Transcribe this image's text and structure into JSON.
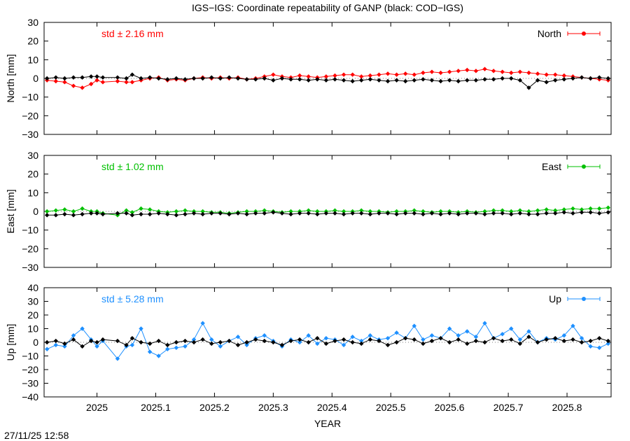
{
  "title": "IGS−IGS: Coordinate repeatability of GANP (black: COD−IGS)",
  "timestamp": "27/11/25 12:58",
  "chart_data": {
    "type": "line",
    "xlabel": "YEAR",
    "xlim": [
      2024.91,
      2025.875
    ],
    "x_ticks": [
      2025,
      2025.1,
      2025.2,
      2025.3,
      2025.4,
      2025.5,
      2025.6,
      2025.7,
      2025.8
    ],
    "x_tick_labels": [
      "2025",
      "2025.1",
      "2025.2",
      "2025.3",
      "2025.4",
      "2025.5",
      "2025.6",
      "2025.7",
      "2025.8"
    ],
    "panels": [
      {
        "id": "north",
        "ylabel": "North [mm]",
        "ylim": [
          -30,
          30
        ],
        "y_ticks": [
          -30,
          -20,
          -10,
          0,
          10,
          20,
          30
        ],
        "std_text": "std ± 2.16 mm",
        "legend": "North",
        "color": "#ff0000",
        "comparison_color": "#000000",
        "series": [
          {
            "name": "North",
            "color": "#ff0000",
            "x": [
              2024.915,
              2024.93,
              2024.945,
              2024.96,
              2024.975,
              2024.99,
              2025.0,
              2025.01,
              2025.035,
              2025.05,
              2025.06,
              2025.075,
              2025.09,
              2025.105,
              2025.12,
              2025.135,
              2025.15,
              2025.165,
              2025.18,
              2025.195,
              2025.21,
              2025.225,
              2025.24,
              2025.255,
              2025.27,
              2025.285,
              2025.3,
              2025.315,
              2025.33,
              2025.345,
              2025.36,
              2025.375,
              2025.39,
              2025.405,
              2025.42,
              2025.435,
              2025.45,
              2025.465,
              2025.48,
              2025.495,
              2025.51,
              2025.525,
              2025.54,
              2025.555,
              2025.57,
              2025.585,
              2025.6,
              2025.615,
              2025.63,
              2025.645,
              2025.66,
              2025.675,
              2025.69,
              2025.705,
              2025.72,
              2025.735,
              2025.75,
              2025.765,
              2025.78,
              2025.795,
              2025.81,
              2025.825,
              2025.84,
              2025.855,
              2025.87
            ],
            "y": [
              -1,
              -1.5,
              -2,
              -4,
              -5,
              -3,
              -1,
              -2,
              -1.5,
              -2,
              -2,
              -1,
              0,
              0.5,
              -1,
              -0.5,
              -1,
              0,
              0.5,
              0,
              0.5,
              0,
              0.5,
              -0.5,
              0,
              1,
              2,
              1,
              0.5,
              1.5,
              1,
              0.5,
              1,
              1.5,
              2,
              2,
              1,
              1.5,
              2,
              2.5,
              2,
              2.5,
              2,
              3,
              3.5,
              3,
              3.5,
              4,
              4.5,
              4,
              5,
              4,
              3.5,
              3,
              3.5,
              3,
              2.5,
              2,
              2,
              1.5,
              1,
              0.5,
              0,
              -0.5,
              -1
            ]
          },
          {
            "name": "COD−IGS",
            "color": "#000000",
            "x": [
              2024.915,
              2024.93,
              2024.945,
              2024.96,
              2024.975,
              2024.99,
              2025.0,
              2025.01,
              2025.035,
              2025.05,
              2025.06,
              2025.075,
              2025.09,
              2025.105,
              2025.12,
              2025.135,
              2025.15,
              2025.165,
              2025.18,
              2025.195,
              2025.21,
              2025.225,
              2025.24,
              2025.255,
              2025.27,
              2025.285,
              2025.3,
              2025.315,
              2025.33,
              2025.345,
              2025.36,
              2025.375,
              2025.39,
              2025.405,
              2025.42,
              2025.435,
              2025.45,
              2025.465,
              2025.48,
              2025.495,
              2025.51,
              2025.525,
              2025.54,
              2025.555,
              2025.57,
              2025.585,
              2025.6,
              2025.615,
              2025.63,
              2025.645,
              2025.66,
              2025.675,
              2025.69,
              2025.705,
              2025.72,
              2025.735,
              2025.75,
              2025.765,
              2025.78,
              2025.795,
              2025.81,
              2025.825,
              2025.84,
              2025.855,
              2025.87
            ],
            "y": [
              0,
              0.5,
              0,
              0.5,
              0.5,
              1,
              1,
              0.5,
              0.5,
              0,
              2,
              0,
              0.5,
              0,
              -0.5,
              0,
              -0.5,
              0,
              0,
              0.5,
              0,
              0.5,
              0,
              -0.5,
              -0.5,
              0,
              -1,
              0,
              -0.5,
              -0.5,
              -1,
              -0.5,
              -1,
              -0.5,
              -1,
              -1.5,
              -1,
              -0.5,
              -1,
              -1.5,
              -1,
              -1.5,
              -1,
              -0.5,
              -1,
              -1.5,
              -1,
              -1.5,
              -1,
              -1,
              -0.5,
              -0.5,
              0,
              0,
              -1,
              -5,
              -1,
              -2,
              -1,
              -0.5,
              0,
              0.5,
              0,
              0.5,
              0
            ]
          }
        ]
      },
      {
        "id": "east",
        "ylabel": "East [mm]",
        "ylim": [
          -30,
          30
        ],
        "y_ticks": [
          -30,
          -20,
          -10,
          0,
          10,
          20,
          30
        ],
        "std_text": "std ± 1.02 mm",
        "legend": "East",
        "color": "#00c000",
        "comparison_color": "#000000",
        "series": [
          {
            "name": "East",
            "color": "#00c000",
            "x": [
              2024.915,
              2024.93,
              2024.945,
              2024.96,
              2024.975,
              2024.99,
              2025.0,
              2025.01,
              2025.035,
              2025.05,
              2025.06,
              2025.075,
              2025.09,
              2025.105,
              2025.12,
              2025.135,
              2025.15,
              2025.165,
              2025.18,
              2025.195,
              2025.21,
              2025.225,
              2025.24,
              2025.255,
              2025.27,
              2025.285,
              2025.3,
              2025.315,
              2025.33,
              2025.345,
              2025.36,
              2025.375,
              2025.39,
              2025.405,
              2025.42,
              2025.435,
              2025.45,
              2025.465,
              2025.48,
              2025.495,
              2025.51,
              2025.525,
              2025.54,
              2025.555,
              2025.57,
              2025.585,
              2025.6,
              2025.615,
              2025.63,
              2025.645,
              2025.66,
              2025.675,
              2025.69,
              2025.705,
              2025.72,
              2025.735,
              2025.75,
              2025.765,
              2025.78,
              2025.795,
              2025.81,
              2025.825,
              2025.84,
              2025.855,
              2025.87
            ],
            "y": [
              0,
              0.5,
              1,
              0,
              1.5,
              0,
              0,
              -1,
              -2,
              0.5,
              -0.5,
              1.5,
              1,
              0,
              -0.5,
              0,
              0.5,
              0,
              0,
              -0.5,
              -0.5,
              -1,
              -0.5,
              0,
              0,
              0.5,
              0,
              -0.5,
              0,
              0,
              0.5,
              0,
              0,
              0.5,
              0,
              0,
              0.5,
              0,
              0,
              -0.5,
              0,
              0,
              0.5,
              0,
              -0.5,
              0,
              0,
              -0.5,
              0,
              -0.5,
              0,
              0.5,
              0.5,
              0,
              0.5,
              0,
              0.5,
              1,
              0.5,
              1,
              1.5,
              1,
              1.5,
              1.5,
              2
            ]
          },
          {
            "name": "COD−IGS",
            "color": "#000000",
            "x": [
              2024.915,
              2024.93,
              2024.945,
              2024.96,
              2024.975,
              2024.99,
              2025.0,
              2025.01,
              2025.035,
              2025.05,
              2025.06,
              2025.075,
              2025.09,
              2025.105,
              2025.12,
              2025.135,
              2025.15,
              2025.165,
              2025.18,
              2025.195,
              2025.21,
              2025.225,
              2025.24,
              2025.255,
              2025.27,
              2025.285,
              2025.3,
              2025.315,
              2025.33,
              2025.345,
              2025.36,
              2025.375,
              2025.39,
              2025.405,
              2025.42,
              2025.435,
              2025.45,
              2025.465,
              2025.48,
              2025.495,
              2025.51,
              2025.525,
              2025.54,
              2025.555,
              2025.57,
              2025.585,
              2025.6,
              2025.615,
              2025.63,
              2025.645,
              2025.66,
              2025.675,
              2025.69,
              2025.705,
              2025.72,
              2025.735,
              2025.75,
              2025.765,
              2025.78,
              2025.795,
              2025.81,
              2025.825,
              2025.84,
              2025.855,
              2025.87
            ],
            "y": [
              -2,
              -2,
              -1.5,
              -2,
              -1.5,
              -1,
              -1,
              -1.5,
              -1,
              -1,
              -2,
              -1.5,
              -1.5,
              -1,
              -1.5,
              -2,
              -1.5,
              -1,
              -1.5,
              -1,
              -1,
              -1.5,
              -1,
              -1.5,
              -1,
              -1,
              -0.5,
              -1,
              -1.5,
              -1,
              -1,
              -1.5,
              -1,
              -1,
              -1.5,
              -1,
              -1,
              -1.5,
              -1,
              -1,
              -1.5,
              -1,
              -1,
              -1.5,
              -1,
              -1.5,
              -1,
              -1.5,
              -1,
              -1,
              -1.5,
              -1,
              -1,
              -1.5,
              -1,
              -1.5,
              -1.5,
              -1,
              -1,
              -0.5,
              -1,
              -0.5,
              -0.5,
              -1,
              -0.5
            ]
          }
        ]
      },
      {
        "id": "up",
        "ylabel": "Up [mm]",
        "ylim": [
          -40,
          40
        ],
        "y_ticks": [
          -40,
          -30,
          -20,
          -10,
          0,
          10,
          20,
          30,
          40
        ],
        "std_text": "std ± 5.28 mm",
        "legend": "Up",
        "color": "#1e90ff",
        "comparison_color": "#000000",
        "series": [
          {
            "name": "Up",
            "color": "#1e90ff",
            "x": [
              2024.915,
              2024.93,
              2024.945,
              2024.96,
              2024.975,
              2024.99,
              2025.0,
              2025.01,
              2025.035,
              2025.05,
              2025.06,
              2025.075,
              2025.09,
              2025.105,
              2025.12,
              2025.135,
              2025.15,
              2025.165,
              2025.18,
              2025.195,
              2025.21,
              2025.225,
              2025.24,
              2025.255,
              2025.27,
              2025.285,
              2025.3,
              2025.315,
              2025.33,
              2025.345,
              2025.36,
              2025.375,
              2025.39,
              2025.405,
              2025.42,
              2025.435,
              2025.45,
              2025.465,
              2025.48,
              2025.495,
              2025.51,
              2025.525,
              2025.54,
              2025.555,
              2025.57,
              2025.585,
              2025.6,
              2025.615,
              2025.63,
              2025.645,
              2025.66,
              2025.675,
              2025.69,
              2025.705,
              2025.72,
              2025.735,
              2025.75,
              2025.765,
              2025.78,
              2025.795,
              2025.81,
              2025.825,
              2025.84,
              2025.855,
              2025.87
            ],
            "y": [
              -5,
              -2,
              -3,
              5,
              10,
              2,
              -3,
              1,
              -12,
              -3,
              -2,
              10,
              -7,
              -10,
              -5,
              -4,
              -3,
              2,
              14,
              2,
              -3,
              1,
              4,
              -2,
              3,
              5,
              1,
              -3,
              2,
              0,
              5,
              -1,
              3,
              2,
              -2,
              4,
              1,
              5,
              2,
              3,
              7,
              3,
              12,
              2,
              5,
              3,
              10,
              5,
              8,
              4,
              14,
              3,
              6,
              10,
              2,
              8,
              0,
              3,
              2,
              5,
              12,
              3,
              -3,
              -4,
              -1
            ]
          },
          {
            "name": "COD−IGS",
            "color": "#000000",
            "x": [
              2024.915,
              2024.93,
              2024.945,
              2024.96,
              2024.975,
              2024.99,
              2025.0,
              2025.01,
              2025.035,
              2025.05,
              2025.06,
              2025.075,
              2025.09,
              2025.105,
              2025.12,
              2025.135,
              2025.15,
              2025.165,
              2025.18,
              2025.195,
              2025.21,
              2025.225,
              2025.24,
              2025.255,
              2025.27,
              2025.285,
              2025.3,
              2025.315,
              2025.33,
              2025.345,
              2025.36,
              2025.375,
              2025.39,
              2025.405,
              2025.42,
              2025.435,
              2025.45,
              2025.465,
              2025.48,
              2025.495,
              2025.51,
              2025.525,
              2025.54,
              2025.555,
              2025.57,
              2025.585,
              2025.6,
              2025.615,
              2025.63,
              2025.645,
              2025.66,
              2025.675,
              2025.69,
              2025.705,
              2025.72,
              2025.735,
              2025.75,
              2025.765,
              2025.78,
              2025.795,
              2025.81,
              2025.825,
              2025.84,
              2025.855,
              2025.87
            ],
            "y": [
              0,
              1,
              -1,
              2,
              -3,
              1,
              0,
              2,
              1,
              -2,
              3,
              0,
              -1,
              1,
              -2,
              0,
              1,
              0,
              2,
              -1,
              0,
              1,
              -2,
              0,
              2,
              1,
              0,
              -2,
              1,
              2,
              0,
              3,
              -1,
              1,
              2,
              0,
              -1,
              2,
              1,
              -2,
              0,
              3,
              2,
              -1,
              1,
              3,
              0,
              2,
              -1,
              1,
              0,
              3,
              1,
              2,
              -1,
              4,
              0,
              2,
              3,
              1,
              2,
              0,
              1,
              3,
              1
            ]
          }
        ]
      }
    ]
  }
}
